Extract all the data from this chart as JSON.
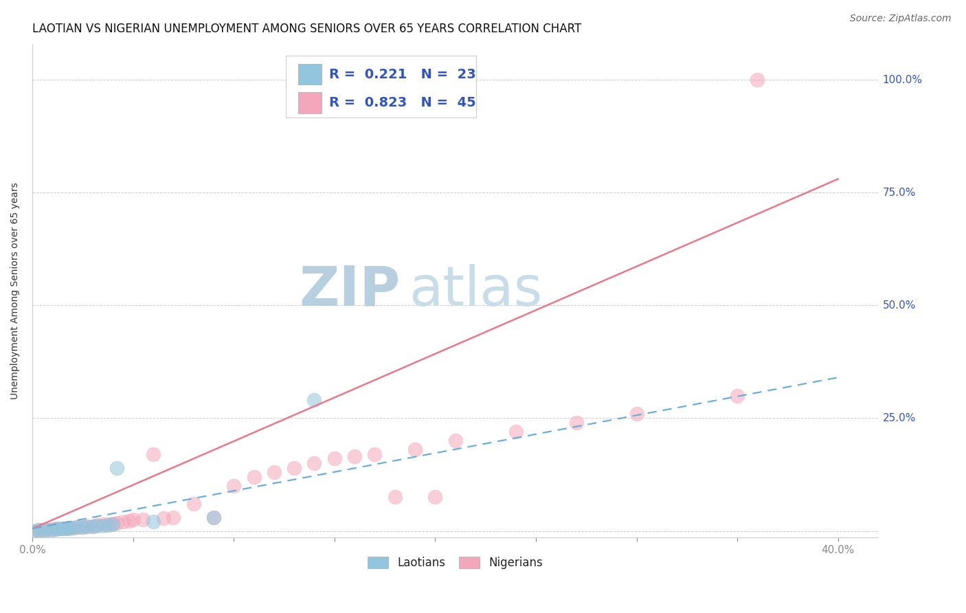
{
  "title": "LAOTIAN VS NIGERIAN UNEMPLOYMENT AMONG SENIORS OVER 65 YEARS CORRELATION CHART",
  "source": "Source: ZipAtlas.com",
  "ylabel": "Unemployment Among Seniors over 65 years",
  "watermark_zip": "ZIP",
  "watermark_atlas": "atlas",
  "legend_line1": "R =  0.221   N =  23",
  "legend_line2": "R =  0.823   N =  45",
  "xlim": [
    0.0,
    0.42
  ],
  "ylim": [
    -0.015,
    1.08
  ],
  "xticks": [
    0.0,
    0.05,
    0.1,
    0.15,
    0.2,
    0.25,
    0.3,
    0.35,
    0.4
  ],
  "ytick_positions": [
    0.0,
    0.25,
    0.5,
    0.75,
    1.0
  ],
  "ytick_labels": [
    "",
    "25.0%",
    "50.0%",
    "75.0%",
    "100.0%"
  ],
  "laotian_color": "#92c5de",
  "nigerian_color": "#f4a6ba",
  "laotian_line_color": "#6aaed6",
  "nigerian_line_color": "#e8788a",
  "laotian_scatter": [
    [
      0.0,
      0.0
    ],
    [
      0.003,
      0.002
    ],
    [
      0.005,
      0.003
    ],
    [
      0.007,
      0.002
    ],
    [
      0.01,
      0.003
    ],
    [
      0.012,
      0.004
    ],
    [
      0.013,
      0.005
    ],
    [
      0.015,
      0.005
    ],
    [
      0.017,
      0.006
    ],
    [
      0.018,
      0.007
    ],
    [
      0.02,
      0.007
    ],
    [
      0.022,
      0.008
    ],
    [
      0.025,
      0.009
    ],
    [
      0.027,
      0.01
    ],
    [
      0.03,
      0.01
    ],
    [
      0.032,
      0.011
    ],
    [
      0.035,
      0.012
    ],
    [
      0.038,
      0.013
    ],
    [
      0.04,
      0.014
    ],
    [
      0.042,
      0.14
    ],
    [
      0.06,
      0.02
    ],
    [
      0.09,
      0.03
    ],
    [
      0.14,
      0.29
    ]
  ],
  "nigerian_scatter": [
    [
      0.0,
      0.0
    ],
    [
      0.003,
      0.002
    ],
    [
      0.005,
      0.003
    ],
    [
      0.007,
      0.003
    ],
    [
      0.01,
      0.004
    ],
    [
      0.012,
      0.005
    ],
    [
      0.015,
      0.005
    ],
    [
      0.017,
      0.006
    ],
    [
      0.018,
      0.007
    ],
    [
      0.02,
      0.007
    ],
    [
      0.022,
      0.008
    ],
    [
      0.025,
      0.009
    ],
    [
      0.027,
      0.01
    ],
    [
      0.03,
      0.01
    ],
    [
      0.032,
      0.013
    ],
    [
      0.035,
      0.014
    ],
    [
      0.037,
      0.015
    ],
    [
      0.04,
      0.016
    ],
    [
      0.042,
      0.017
    ],
    [
      0.045,
      0.02
    ],
    [
      0.048,
      0.022
    ],
    [
      0.05,
      0.025
    ],
    [
      0.055,
      0.025
    ],
    [
      0.06,
      0.17
    ],
    [
      0.065,
      0.028
    ],
    [
      0.07,
      0.03
    ],
    [
      0.08,
      0.06
    ],
    [
      0.09,
      0.03
    ],
    [
      0.1,
      0.1
    ],
    [
      0.11,
      0.12
    ],
    [
      0.12,
      0.13
    ],
    [
      0.13,
      0.14
    ],
    [
      0.14,
      0.15
    ],
    [
      0.15,
      0.16
    ],
    [
      0.16,
      0.165
    ],
    [
      0.17,
      0.17
    ],
    [
      0.18,
      0.075
    ],
    [
      0.19,
      0.18
    ],
    [
      0.2,
      0.075
    ],
    [
      0.21,
      0.2
    ],
    [
      0.24,
      0.22
    ],
    [
      0.27,
      0.24
    ],
    [
      0.3,
      0.26
    ],
    [
      0.35,
      0.3
    ],
    [
      0.36,
      1.0
    ]
  ],
  "laotian_reg": [
    0.0,
    0.005,
    0.4,
    0.34
  ],
  "nigerian_reg": [
    0.0,
    0.005,
    0.4,
    0.78
  ],
  "background_color": "#ffffff",
  "grid_color": "#cccccc",
  "title_fontsize": 12,
  "tick_fontsize": 11,
  "legend_fontsize": 14,
  "watermark_fontsize": 58,
  "watermark_color_zip": "#b8cfe0",
  "watermark_color_atlas": "#c8dde8",
  "source_fontsize": 10
}
